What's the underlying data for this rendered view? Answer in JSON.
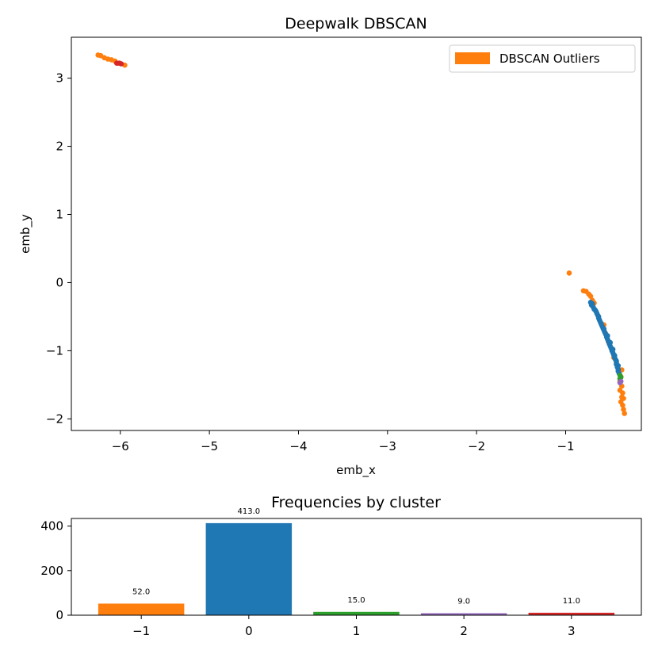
{
  "colors": {
    "-1": "#ff7f0e",
    "0": "#1f77b4",
    "1": "#2ca02c",
    "2": "#9467bd",
    "3": "#d62728"
  },
  "chart_data": [
    {
      "type": "scatter",
      "title": "Deepwalk DBSCAN",
      "xlabel": "emb_x",
      "ylabel": "emb_y",
      "xlim": [
        -6.55,
        -0.15
      ],
      "ylim": [
        -2.17,
        3.6
      ],
      "xticks": [
        -6,
        -5,
        -4,
        -3,
        -2,
        -1
      ],
      "xtick_labels": [
        "−6",
        "−5",
        "−4",
        "−3",
        "−2",
        "−1"
      ],
      "yticks": [
        3,
        2,
        1,
        0,
        -1,
        -2
      ],
      "ytick_labels": [
        "3",
        "2",
        "1",
        "0",
        "−1",
        "−2"
      ],
      "legend": {
        "label": "DBSCAN Outliers",
        "color": "#ff7f0e",
        "placement": "top-right"
      },
      "series": [
        {
          "cluster": "-1",
          "points": [
            [
              -6.25,
              3.34
            ],
            [
              -6.22,
              3.33
            ],
            [
              -6.18,
              3.3
            ],
            [
              -6.14,
              3.28
            ],
            [
              -6.1,
              3.27
            ],
            [
              -6.06,
              3.25
            ],
            [
              -6.02,
              3.22
            ],
            [
              -5.95,
              3.19
            ],
            [
              -0.96,
              0.14
            ],
            [
              -0.8,
              -0.12
            ],
            [
              -0.77,
              -0.13
            ],
            [
              -0.74,
              -0.17
            ],
            [
              -0.72,
              -0.2
            ],
            [
              -0.7,
              -0.26
            ],
            [
              -0.68,
              -0.3
            ],
            [
              -0.57,
              -0.62
            ],
            [
              -0.55,
              -0.75
            ],
            [
              -0.52,
              -0.87
            ],
            [
              -0.48,
              -0.97
            ],
            [
              -0.46,
              -1.1
            ],
            [
              -0.37,
              -1.28
            ],
            [
              -0.38,
              -1.38
            ],
            [
              -0.39,
              -1.45
            ],
            [
              -0.37,
              -1.52
            ],
            [
              -0.39,
              -1.58
            ],
            [
              -0.36,
              -1.62
            ],
            [
              -0.37,
              -1.68
            ],
            [
              -0.35,
              -1.7
            ],
            [
              -0.38,
              -1.75
            ],
            [
              -0.36,
              -1.8
            ],
            [
              -0.35,
              -1.86
            ],
            [
              -0.34,
              -1.92
            ]
          ]
        },
        {
          "cluster": "0",
          "points": [
            [
              -0.72,
              -0.29
            ],
            [
              -0.71,
              -0.33
            ],
            [
              -0.69,
              -0.36
            ],
            [
              -0.68,
              -0.39
            ],
            [
              -0.66,
              -0.42
            ],
            [
              -0.65,
              -0.45
            ],
            [
              -0.64,
              -0.48
            ],
            [
              -0.63,
              -0.52
            ],
            [
              -0.62,
              -0.55
            ],
            [
              -0.61,
              -0.58
            ],
            [
              -0.6,
              -0.61
            ],
            [
              -0.59,
              -0.64
            ],
            [
              -0.58,
              -0.67
            ],
            [
              -0.57,
              -0.7
            ],
            [
              -0.56,
              -0.73
            ],
            [
              -0.55,
              -0.76
            ],
            [
              -0.54,
              -0.8
            ],
            [
              -0.53,
              -0.83
            ],
            [
              -0.52,
              -0.86
            ],
            [
              -0.51,
              -0.9
            ],
            [
              -0.5,
              -0.93
            ],
            [
              -0.49,
              -0.96
            ],
            [
              -0.48,
              -1.0
            ],
            [
              -0.47,
              -1.03
            ],
            [
              -0.46,
              -1.06
            ],
            [
              -0.45,
              -1.1
            ],
            [
              -0.44,
              -1.13
            ],
            [
              -0.43,
              -1.17
            ],
            [
              -0.43,
              -1.2
            ],
            [
              -0.42,
              -1.24
            ],
            [
              -0.41,
              -1.27
            ],
            [
              -0.41,
              -1.3
            ],
            [
              -0.4,
              -1.33
            ],
            [
              -0.7,
              -0.31
            ],
            [
              -0.67,
              -0.4
            ],
            [
              -0.63,
              -0.5
            ],
            [
              -0.6,
              -0.6
            ],
            [
              -0.57,
              -0.68
            ],
            [
              -0.53,
              -0.78
            ],
            [
              -0.5,
              -0.88
            ],
            [
              -0.47,
              -0.98
            ],
            [
              -0.45,
              -1.07
            ],
            [
              -0.43,
              -1.15
            ],
            [
              -0.41,
              -1.22
            ]
          ]
        },
        {
          "cluster": "1",
          "points": [
            [
              -0.39,
              -1.36
            ],
            [
              -0.38,
              -1.39
            ],
            [
              -0.39,
              -1.41
            ]
          ]
        },
        {
          "cluster": "2",
          "points": [
            [
              -0.38,
              -1.45
            ],
            [
              -0.39,
              -1.47
            ]
          ]
        },
        {
          "cluster": "3",
          "points": [
            [
              -6.04,
              3.22
            ],
            [
              -6.01,
              3.22
            ],
            [
              -5.99,
              3.21
            ]
          ]
        }
      ]
    },
    {
      "type": "bar",
      "title": "Frequencies by cluster",
      "categories": [
        "−1",
        "0",
        "1",
        "2",
        "3"
      ],
      "values": [
        52,
        413,
        15,
        9,
        11
      ],
      "value_labels": [
        "52.0",
        "413.0",
        "15.0",
        "9.0",
        "11.0"
      ],
      "bar_colors": [
        "#ff7f0e",
        "#1f77b4",
        "#2ca02c",
        "#9467bd",
        "#d62728"
      ],
      "ylim": [
        0,
        434
      ],
      "yticks": [
        0,
        200,
        400
      ],
      "ytick_labels": [
        "0",
        "200",
        "400"
      ]
    }
  ]
}
